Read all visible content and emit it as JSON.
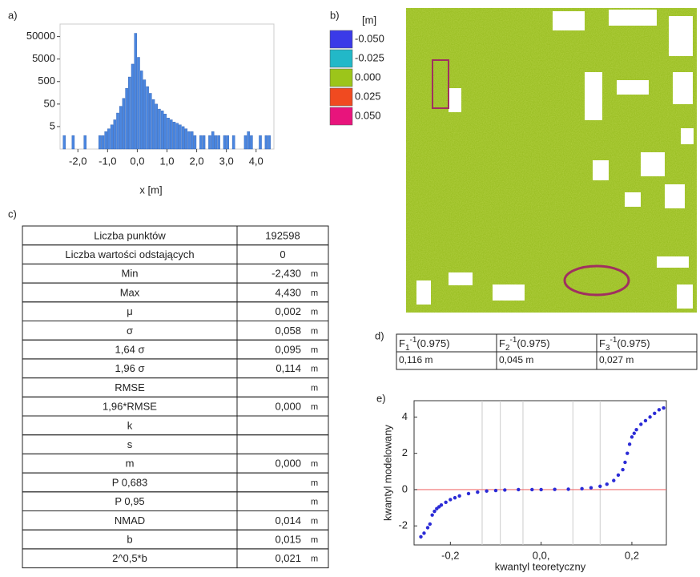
{
  "panels": [
    "a)",
    "b)",
    "c)",
    "d)",
    "e)"
  ],
  "chart_data": [
    {
      "type": "histogram",
      "xlabel": "x [m]",
      "color": "#4a86e0",
      "log_y": true,
      "bins": [
        -2.5,
        -2.4,
        -2.3,
        -2.2,
        -2.1,
        -2.0,
        -1.9,
        -1.8,
        -1.7,
        -1.6,
        -1.5,
        -1.4,
        -1.3,
        -1.2,
        -1.1,
        -1.0,
        -0.9,
        -0.8,
        -0.7,
        -0.6,
        -0.5,
        -0.4,
        -0.3,
        -0.2,
        -0.1,
        0.0,
        0.1,
        0.2,
        0.3,
        0.4,
        0.5,
        0.6,
        0.7,
        0.8,
        0.9,
        1.0,
        1.1,
        1.2,
        1.3,
        1.4,
        1.5,
        1.6,
        1.7,
        1.8,
        1.9,
        2.0,
        2.1,
        2.2,
        2.3,
        2.4,
        2.5,
        2.6,
        2.7,
        2.8,
        2.9,
        3.0,
        3.1,
        3.2,
        3.3,
        3.4,
        3.5,
        3.6,
        3.7,
        3.8,
        3.9,
        4.0,
        4.1,
        4.2,
        4.3,
        4.4,
        4.5
      ],
      "values": [
        2,
        0,
        0,
        2,
        0,
        0,
        0,
        2,
        0,
        0,
        0,
        0,
        2,
        2,
        3,
        4,
        6,
        10,
        20,
        40,
        90,
        250,
        800,
        3000,
        70000,
        6000,
        1500,
        600,
        300,
        150,
        80,
        50,
        30,
        25,
        18,
        12,
        10,
        8,
        7,
        6,
        5,
        4,
        3,
        3,
        2,
        0,
        2,
        2,
        0,
        2,
        3,
        2,
        2,
        0,
        2,
        2,
        0,
        2,
        0,
        0,
        0,
        2,
        3,
        2,
        0,
        0,
        2,
        0,
        2,
        2
      ],
      "xlim": [
        -2.6,
        4.6
      ],
      "ylim": [
        0.5,
        180000
      ],
      "xticks": [
        {
          "value": -2,
          "label": "-2,0"
        },
        {
          "value": -1,
          "label": "-1,0"
        },
        {
          "value": 0,
          "label": "0,0"
        },
        {
          "value": 1,
          "label": "1,0"
        },
        {
          "value": 2,
          "label": "2,0"
        },
        {
          "value": 3,
          "label": "3,0"
        },
        {
          "value": 4,
          "label": "4,0"
        }
      ],
      "yticks": [
        5,
        50,
        500,
        5000,
        50000
      ]
    },
    {
      "type": "scatter",
      "xlabel": "kwantyl teoretyczny",
      "ylabel": "kwantyl modelowany",
      "color": "#2b2bd6",
      "x": [
        -0.265,
        -0.258,
        -0.25,
        -0.245,
        -0.24,
        -0.235,
        -0.23,
        -0.225,
        -0.22,
        -0.21,
        -0.2,
        -0.19,
        -0.18,
        -0.16,
        -0.14,
        -0.12,
        -0.1,
        -0.08,
        -0.05,
        -0.02,
        0.0,
        0.03,
        0.06,
        0.09,
        0.11,
        0.13,
        0.145,
        0.16,
        0.17,
        0.18,
        0.185,
        0.19,
        0.195,
        0.2,
        0.205,
        0.21,
        0.22,
        0.23,
        0.24,
        0.25,
        0.26,
        0.27
      ],
      "y": [
        -2.6,
        -2.4,
        -2.1,
        -1.9,
        -1.4,
        -1.2,
        -1.05,
        -0.95,
        -0.85,
        -0.7,
        -0.55,
        -0.45,
        -0.35,
        -0.22,
        -0.14,
        -0.08,
        -0.05,
        -0.02,
        0.0,
        0.0,
        0.0,
        0.01,
        0.02,
        0.05,
        0.1,
        0.18,
        0.3,
        0.5,
        0.8,
        1.1,
        1.5,
        2.0,
        2.5,
        2.9,
        3.1,
        3.3,
        3.6,
        3.8,
        4.0,
        4.2,
        4.4,
        4.5
      ],
      "xlim": [
        -0.28,
        0.276
      ],
      "ylim": [
        -3.05,
        4.9
      ],
      "xticks": [
        {
          "value": -0.2,
          "label": "-0,2"
        },
        {
          "value": 0,
          "label": "0,0,"
        },
        {
          "value": 0.2,
          "label": "0,2"
        }
      ],
      "yticks": [
        -2,
        0,
        2,
        4
      ],
      "vlines": [
        -0.13,
        -0.09,
        -0.04,
        0.07,
        0.13
      ],
      "hline": 0,
      "hline_color": "#f07070"
    }
  ],
  "colorbar": {
    "title": "[m]",
    "items": [
      {
        "label": "-0.050",
        "color": "#3a3ae8"
      },
      {
        "label": "-0.025",
        "color": "#22b8c8"
      },
      {
        "label": "0.000",
        "color": "#9cc51a"
      },
      {
        "label": "0.025",
        "color": "#f04a20"
      },
      {
        "label": "0.050",
        "color": "#e8147c"
      }
    ]
  },
  "table_c": {
    "rows": [
      {
        "label": "Liczba punktów",
        "value": "192598"
      },
      {
        "label": "Liczba wartości odstających",
        "value": "0"
      },
      {
        "label": "Min",
        "value": "-2,430",
        "unit": "m"
      },
      {
        "label": "Max",
        "value": "4,430",
        "unit": "m"
      },
      {
        "label": "μ",
        "value": "0,002",
        "unit": "m"
      },
      {
        "label": "σ",
        "value": "0,058",
        "unit": "m"
      },
      {
        "label": "1,64 σ",
        "value": "0,095",
        "unit": "m"
      },
      {
        "label": "1,96 σ",
        "value": "0,114",
        "unit": "m"
      },
      {
        "label": "RMSE",
        "unit": "m"
      },
      {
        "label": "1,96*RMSE",
        "value": "0,000",
        "unit": "m"
      },
      {
        "label": "k"
      },
      {
        "label": "s"
      },
      {
        "label": "m",
        "value": "0,000",
        "unit": "m"
      },
      {
        "label": "P 0,683",
        "unit": "m"
      },
      {
        "label": "P 0,95",
        "unit": "m"
      },
      {
        "label": "NMAD",
        "value": "0,014",
        "unit": "m"
      },
      {
        "label": "b",
        "value": "0,015",
        "unit": "m"
      },
      {
        "label": "2^0,5*b",
        "value": "0,021",
        "unit": "m"
      }
    ]
  },
  "table_d": {
    "headers": [
      {
        "base": "F",
        "sub": "1",
        "sup": "-1",
        "arg": "(0.975)"
      },
      {
        "base": "F",
        "sub": "2",
        "sup": "-1",
        "arg": "(0.975)"
      },
      {
        "base": "F",
        "sub": "3",
        "sup": "-1",
        "arg": "(0.975)"
      }
    ],
    "values": [
      "0,116 m",
      "0,045 m",
      "0,027 m"
    ]
  }
}
